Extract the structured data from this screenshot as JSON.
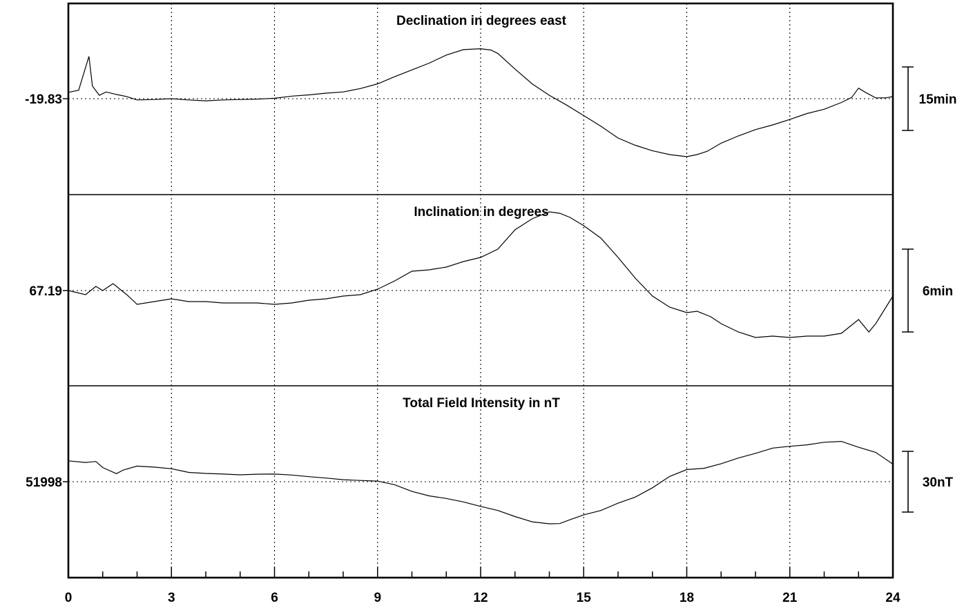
{
  "chart_data": {
    "type": "line",
    "x_ticks": [
      "0",
      "3",
      "6",
      "9",
      "12",
      "15",
      "18",
      "21",
      "24"
    ],
    "xlim": [
      0,
      24
    ],
    "grid": true,
    "panels": [
      {
        "title": "Declination in degrees east",
        "baseline_label": "-19.83",
        "scale_label": "15min",
        "scale_span": 15,
        "series": {
          "x": [
            0,
            0.3,
            0.6,
            0.7,
            0.9,
            1.1,
            1.4,
            1.7,
            2,
            2.5,
            3,
            3.5,
            4,
            4.5,
            5,
            5.5,
            6,
            6.5,
            7,
            7.5,
            8,
            8.5,
            9,
            9.5,
            10,
            10.5,
            11,
            11.5,
            12,
            12.3,
            12.5,
            13,
            13.5,
            14,
            14.5,
            15,
            15.5,
            16,
            16.5,
            17,
            17.5,
            18,
            18.3,
            18.6,
            19,
            19.5,
            20,
            20.5,
            21,
            21.5,
            22,
            22.5,
            22.8,
            23,
            23.2,
            23.5,
            23.8,
            24
          ],
          "y": [
            1.5,
            2,
            10,
            3,
            0.8,
            1.6,
            1,
            0.5,
            -0.3,
            -0.2,
            0,
            -0.3,
            -0.5,
            -0.3,
            -0.2,
            -0.1,
            0.1,
            0.6,
            0.9,
            1.3,
            1.6,
            2.4,
            3.5,
            5.2,
            6.8,
            8.4,
            10.3,
            11.6,
            11.8,
            11.5,
            10.7,
            7,
            3.5,
            0.8,
            -1.5,
            -4,
            -6.5,
            -9.3,
            -11,
            -12.3,
            -13.2,
            -13.7,
            -13.2,
            -12.4,
            -10.5,
            -8.8,
            -7.3,
            -6.2,
            -4.9,
            -3.5,
            -2.5,
            -0.9,
            0.3,
            2.5,
            1.5,
            0.2,
            0.2,
            0.5
          ]
        }
      },
      {
        "title": "Inclination in degrees",
        "baseline_label": "67.19",
        "scale_label": "6min",
        "scale_span": 6,
        "series": {
          "x": [
            0,
            0.5,
            0.8,
            1,
            1.3,
            1.7,
            2,
            2.5,
            3,
            3.5,
            4,
            4.5,
            5,
            5.5,
            6,
            6.5,
            7,
            7.5,
            8,
            8.5,
            9,
            9.5,
            10,
            10.5,
            11,
            11.5,
            12,
            12.5,
            13,
            13.5,
            14,
            14.3,
            14.6,
            15,
            15.5,
            16,
            16.5,
            17,
            17.5,
            18,
            18.3,
            18.7,
            19,
            19.5,
            20,
            20.5,
            21,
            21.5,
            22,
            22.5,
            23,
            23.3,
            23.5,
            24
          ],
          "y": [
            0,
            -0.3,
            0.3,
            0,
            0.5,
            -0.3,
            -1,
            -0.8,
            -0.6,
            -0.8,
            -0.8,
            -0.9,
            -0.9,
            -0.9,
            -1,
            -0.9,
            -0.7,
            -0.6,
            -0.4,
            -0.3,
            0.1,
            0.7,
            1.4,
            1.5,
            1.7,
            2.1,
            2.4,
            3,
            4.4,
            5.2,
            5.7,
            5.6,
            5.3,
            4.7,
            3.8,
            2.4,
            0.9,
            -0.4,
            -1.2,
            -1.6,
            -1.5,
            -1.9,
            -2.4,
            -3,
            -3.4,
            -3.3,
            -3.4,
            -3.3,
            -3.3,
            -3.1,
            -2.1,
            -3,
            -2.4,
            -0.4
          ]
        }
      },
      {
        "title": "Total Field Intensity in nT",
        "baseline_label": "51998",
        "scale_label": "30nT",
        "scale_span": 30,
        "series": {
          "x": [
            0,
            0.5,
            0.8,
            1,
            1.4,
            1.6,
            2,
            2.5,
            3,
            3.5,
            4,
            4.5,
            5,
            5.5,
            6,
            6.5,
            7,
            7.5,
            8,
            8.5,
            9,
            9.5,
            10,
            10.5,
            11,
            11.5,
            12,
            12.5,
            13,
            13.5,
            14,
            14.3,
            14.6,
            15,
            15.5,
            16,
            16.5,
            17,
            17.5,
            18,
            18.5,
            19,
            19.5,
            20,
            20.5,
            21,
            21.5,
            22,
            22.5,
            23,
            23.5,
            24
          ],
          "y": [
            10.3,
            9.5,
            10,
            7,
            4,
            5.8,
            7.7,
            7.2,
            6.4,
            4.6,
            4.1,
            3.8,
            3.4,
            3.7,
            3.8,
            3.3,
            2.5,
            1.8,
            1,
            0.6,
            0.3,
            -1.5,
            -4.8,
            -7,
            -8.3,
            -10,
            -12.2,
            -14.2,
            -17.2,
            -19.8,
            -20.8,
            -20.7,
            -18.8,
            -16.4,
            -14.2,
            -10.6,
            -7.6,
            -3,
            2.6,
            6,
            6.6,
            8.9,
            11.7,
            14,
            16.6,
            17.5,
            18.2,
            19.5,
            19.9,
            17,
            14.5,
            8.7
          ]
        }
      }
    ]
  }
}
